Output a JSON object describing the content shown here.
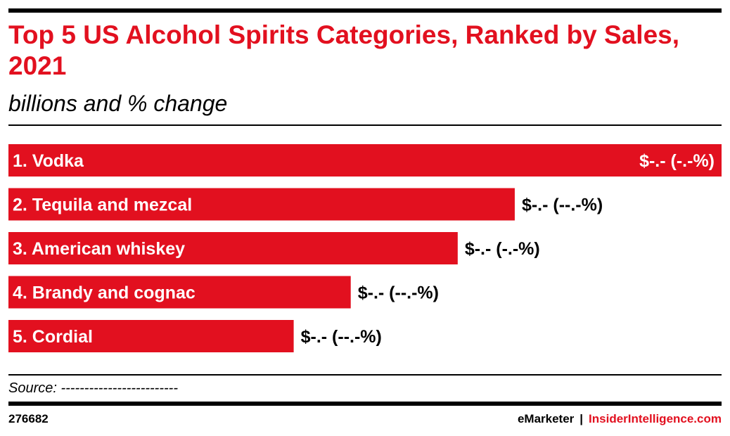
{
  "header": {
    "title": "Top 5 US Alcohol Spirits Categories, Ranked by Sales, 2021",
    "subtitle": "billions and % change"
  },
  "footer": {
    "source": "Source: -------------------------",
    "chart_id": "276682",
    "brand_emarketer": "eMarketer",
    "brand_separator": "|",
    "brand_insider": "InsiderIntelligence.com"
  },
  "colors": {
    "bar": "#e2101f",
    "title": "#e2101f",
    "text": "#000000"
  },
  "chart_data": {
    "type": "bar",
    "orientation": "horizontal",
    "title": "Top 5 US Alcohol Spirits Categories, Ranked by Sales, 2021",
    "subtitle": "billions and % change",
    "categories": [
      "1. Vodka",
      "2. Tequila and mezcal",
      "3. American whiskey",
      "4. Brandy and cognac",
      "5. Cordial"
    ],
    "values": [
      1.0,
      0.71,
      0.63,
      0.48,
      0.4
    ],
    "value_labels": [
      "$-.- (-.-%)",
      "$-.- (--.-%)",
      "$-.- (-.-%)",
      "$-.- (--.-%)",
      "$-.- (--.-%)"
    ],
    "value_label_inside": [
      true,
      false,
      false,
      false,
      false
    ],
    "grid": false,
    "legend": "none"
  }
}
